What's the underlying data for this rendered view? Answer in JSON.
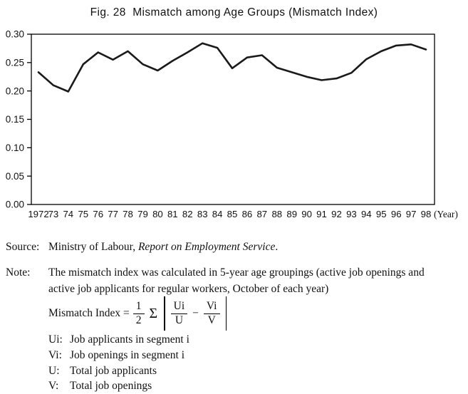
{
  "title": "Fig. 28  Mismatch among Age Groups (Mismatch Index)",
  "chart_data": {
    "type": "line",
    "title": "Fig. 28  Mismatch among Age Groups (Mismatch Index)",
    "categories": [
      "1972",
      "73",
      "74",
      "75",
      "76",
      "77",
      "78",
      "79",
      "80",
      "81",
      "82",
      "83",
      "84",
      "85",
      "86",
      "87",
      "88",
      "89",
      "90",
      "91",
      "92",
      "93",
      "94",
      "95",
      "96",
      "97",
      "98"
    ],
    "values": [
      0.233,
      0.21,
      0.199,
      0.247,
      0.268,
      0.255,
      0.27,
      0.247,
      0.236,
      0.253,
      0.268,
      0.284,
      0.276,
      0.24,
      0.259,
      0.263,
      0.241,
      0.233,
      0.225,
      0.219,
      0.222,
      0.232,
      0.256,
      0.27,
      0.28,
      0.282,
      0.273
    ],
    "x_unit_label": "(Year)",
    "xlabel": "",
    "ylabel": "",
    "ylim": [
      0.0,
      0.3
    ],
    "ytick_step": 0.05,
    "yticks": [
      "0.00",
      "0.05",
      "0.10",
      "0.15",
      "0.20",
      "0.25",
      "0.30"
    ],
    "grid": false,
    "legend": "none",
    "line_color": "#1a1a1a",
    "line_width": 2.6
  },
  "source": {
    "label": "Source:",
    "text": "Ministry of Labour, ",
    "italic": "Report on Employment Service",
    "suffix": "."
  },
  "note": {
    "label": "Note:",
    "line1": "The mismatch index was calculated in 5-year age groupings (active job openings and",
    "line2": "active job applicants for regular workers, October of each year)"
  },
  "formula": {
    "lhs": "Mismatch Index =",
    "frac_num": "1",
    "frac_den": "2",
    "sigma": "Σ",
    "u_num": "Ui",
    "u_den": "U",
    "minus": "−",
    "v_num": "Vi",
    "v_den": "V"
  },
  "definitions": [
    {
      "term": "Ui:",
      "text": "Job applicants in segment i"
    },
    {
      "term": "Vi:",
      "text": "Job openings in segment i"
    },
    {
      "term": "U:",
      "text": "Total job applicants"
    },
    {
      "term": "V:",
      "text": "Total job openings"
    }
  ]
}
